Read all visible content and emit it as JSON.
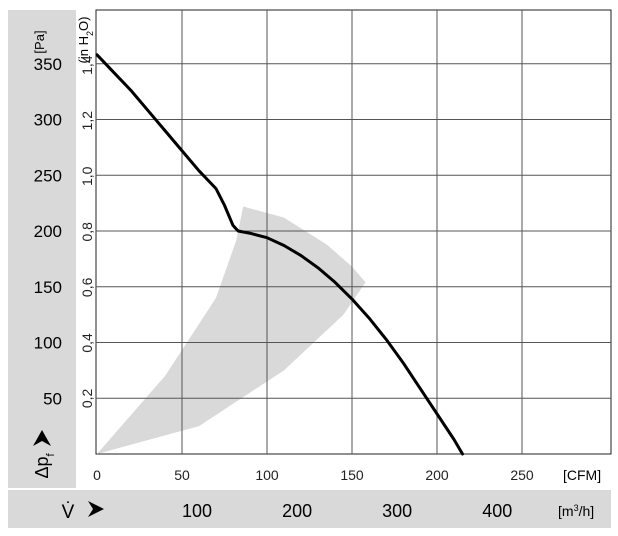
{
  "chart_data": {
    "type": "line",
    "y_left": {
      "unit": "[Pa]",
      "ticks": [
        50,
        100,
        150,
        200,
        250,
        300,
        350
      ],
      "range": [
        0,
        398
      ]
    },
    "y_inner": {
      "unit_prefix": "(in H",
      "unit_sub": "2",
      "unit_suffix": "O)",
      "ticks": [
        0.2,
        0.4,
        0.6,
        0.8,
        1.0,
        1.2,
        1.4
      ],
      "tick_labels": [
        "0,2",
        "0,4",
        "0,6",
        "0,8",
        "1,0",
        "1,2",
        "1,4"
      ]
    },
    "x_top": {
      "unit": "[CFM]",
      "ticks": [
        0,
        50,
        100,
        150,
        200,
        250
      ],
      "range": [
        0,
        302
      ]
    },
    "x_bottom": {
      "unit_prefix": "[m",
      "unit_sup": "3",
      "unit_suffix": "/h]",
      "ticks": [
        100,
        200,
        300,
        400
      ]
    },
    "y_label": {
      "symbol": "Δp",
      "sub": "f"
    },
    "x_label": {
      "symbol": "V̇"
    },
    "grid": true,
    "series": [
      {
        "x": [
          0,
          10,
          20,
          30,
          40,
          50,
          60,
          70,
          75,
          80,
          83,
          90,
          100,
          110,
          120,
          130,
          140,
          150,
          160,
          170,
          180,
          190,
          200,
          210,
          215
        ],
        "y": [
          358,
          342,
          326,
          308,
          290,
          272,
          254,
          238,
          223,
          205,
          200,
          198,
          194,
          187,
          178,
          167,
          154,
          139,
          122,
          103,
          82,
          59,
          36,
          13,
          0
        ]
      }
    ],
    "operating_range": {
      "outer_edge": {
        "x": [
          0,
          40,
          70,
          82,
          86,
          110,
          135,
          150,
          158
        ],
        "y": [
          0,
          70,
          140,
          192,
          222,
          212,
          188,
          168,
          154
        ]
      },
      "inner_edge": {
        "x": [
          0,
          60,
          110,
          145,
          158
        ],
        "y": [
          0,
          25,
          75,
          125,
          154
        ]
      }
    },
    "colors": {
      "curve": "#000000",
      "band": "#d9d9d9",
      "axis_band": "#d9d9d9",
      "grid": "#555555"
    }
  }
}
